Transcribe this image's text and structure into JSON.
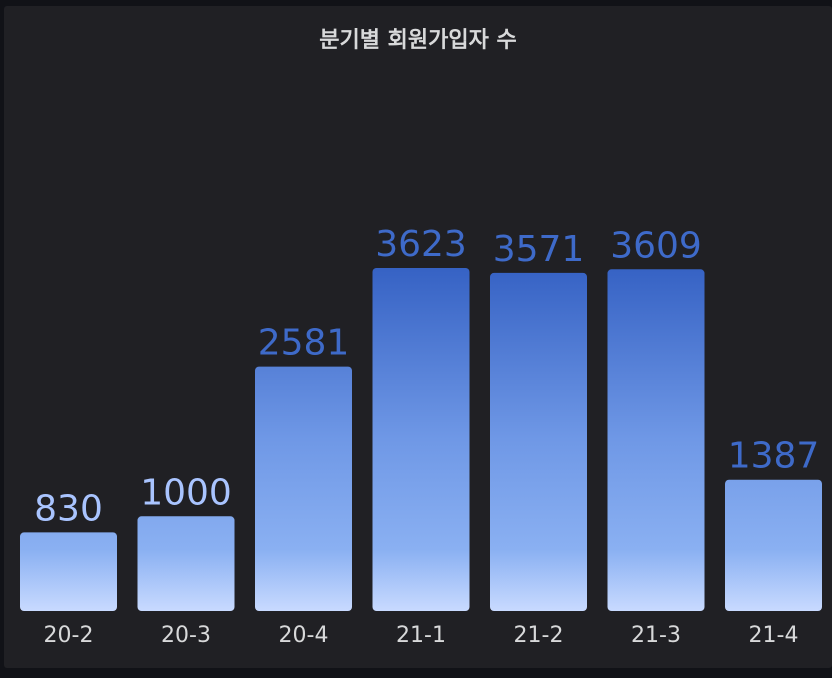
{
  "panel": {
    "title": "분기별 회원가입자 수"
  },
  "chart_data": {
    "type": "bar",
    "title": "분기별 회원가입자 수",
    "categories": [
      "20-2",
      "20-3",
      "20-4",
      "21-1",
      "21-2",
      "21-3",
      "21-4"
    ],
    "values": [
      830,
      1000,
      2581,
      3623,
      3571,
      3609,
      1387
    ],
    "ylim": [
      0,
      3623
    ],
    "grid": false,
    "legend": "none",
    "colors": {
      "bar_top": "#3662c4",
      "bar_mid": "#8ab0f2",
      "bar_bottom": "#c8daff",
      "value_label_low": "#a9c4ff",
      "value_label_high": "#3e6ac9",
      "axis_label": "#d8d9da"
    }
  }
}
